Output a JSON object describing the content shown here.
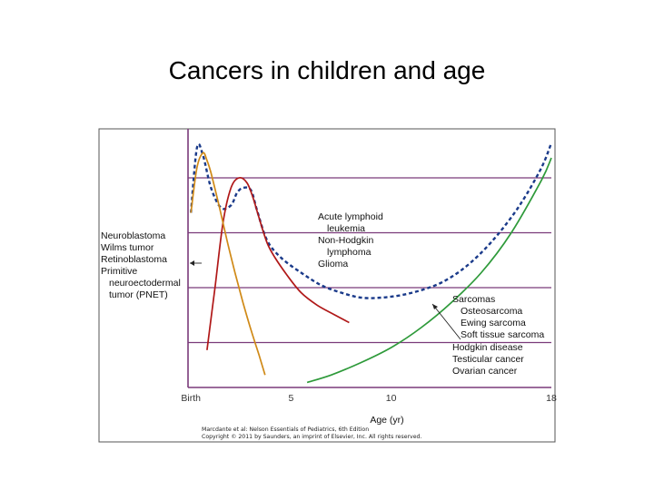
{
  "page": {
    "title": "Cancers in children and age"
  },
  "figure": {
    "credit_line1": "Marcdante et al: Nelson Essentials of Pediatrics, 6th Edition",
    "credit_line2": "Copyright © 2011 by Saunders, an imprint of Elsevier, Inc. All rights reserved."
  },
  "chart_data": {
    "type": "line",
    "title": "",
    "xlabel": "Age (yr)",
    "ylabel": "",
    "xlim": [
      -0.6,
      18
    ],
    "ylim": [
      0,
      100
    ],
    "x_ticks": [
      {
        "value": 0,
        "label": "Birth"
      },
      {
        "value": 5,
        "label": "5"
      },
      {
        "value": 10,
        "label": "10"
      },
      {
        "value": 18,
        "label": "18"
      }
    ],
    "grid": {
      "horizontal": true,
      "vertical": false,
      "color": "#7a3a7a"
    },
    "series": [
      {
        "color": "#1a3a8a",
        "dash": true,
        "x": [
          0,
          0.3,
          0.6,
          1.0,
          1.5,
          2.0,
          2.3,
          2.6,
          3.0,
          3.3,
          3.8,
          4.5,
          5.5,
          6.5,
          7.5,
          8.5,
          9.5,
          10.5,
          11.5,
          12.5,
          13.5,
          14.5,
          15.5,
          16.5,
          17.5,
          18.0
        ],
        "y": [
          70,
          96,
          93,
          80,
          72,
          73,
          78,
          80,
          79,
          71,
          59,
          52,
          46,
          41,
          38,
          36,
          36,
          37,
          39,
          42,
          47,
          54,
          63,
          74,
          88,
          98
        ]
      },
      {
        "color": "#b01818",
        "dash": false,
        "x": [
          0.8,
          1.2,
          1.6,
          2.0,
          2.4,
          2.8,
          3.1,
          3.4,
          3.8,
          4.2,
          4.8,
          5.5,
          6.3,
          7.2,
          7.9
        ],
        "y": [
          15,
          40,
          66,
          80,
          84,
          82,
          76,
          68,
          58,
          52,
          45,
          38,
          33,
          29,
          26
        ]
      },
      {
        "color": "#d08a18",
        "dash": false,
        "x": [
          0,
          0.3,
          0.6,
          0.8,
          1.0,
          1.4,
          1.8,
          2.2,
          2.6,
          3.0,
          3.4,
          3.7
        ],
        "y": [
          70,
          88,
          94,
          91,
          86,
          73,
          59,
          46,
          34,
          23,
          13,
          5
        ]
      },
      {
        "color": "#2e9a3a",
        "dash": false,
        "x": [
          5.8,
          7.0,
          8.5,
          10.0,
          11.5,
          13.0,
          14.5,
          16.0,
          17.5,
          18.0
        ],
        "y": [
          2,
          5,
          10,
          16,
          24,
          34,
          46,
          62,
          83,
          92
        ]
      }
    ],
    "annotations": {
      "left": [
        "Neuroblastoma",
        "Wilms tumor",
        "Retinoblastoma",
        "Primitive",
        "neuroectodermal",
        "tumor (PNET)"
      ],
      "middle": [
        "Acute lymphoid",
        "leukemia",
        "Non-Hodgkin",
        "lymphoma",
        "Glioma"
      ],
      "right_upper": [
        "Sarcomas",
        "Osteosarcoma",
        "Ewing sarcoma",
        "Soft tissue sarcoma"
      ],
      "right_lower": [
        "Hodgkin disease",
        "Testicular cancer",
        "Ovarian cancer"
      ]
    }
  }
}
